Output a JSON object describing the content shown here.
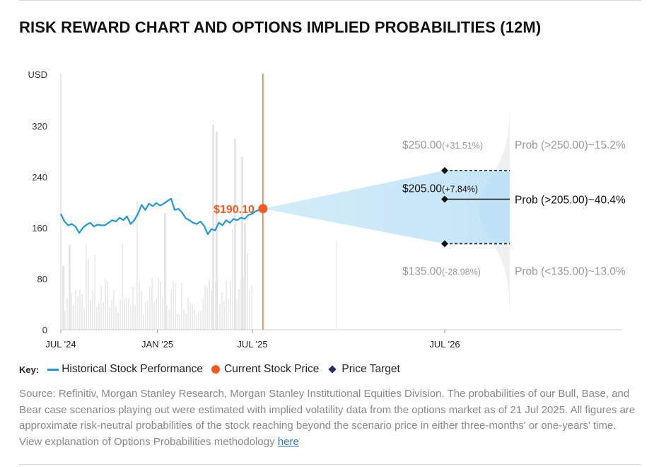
{
  "title": "RISK REWARD CHART AND OPTIONS IMPLIED PROBABILITIES (12M)",
  "chart_data": {
    "type": "line",
    "y_unit": "USD",
    "ylim": [
      0,
      360
    ],
    "y_ticks": [
      {
        "value": 0,
        "label": "0"
      },
      {
        "value": 80,
        "label": "80"
      },
      {
        "value": 160,
        "label": "160"
      },
      {
        "value": 240,
        "label": "240"
      },
      {
        "value": 320,
        "label": "320"
      }
    ],
    "x_ticks": [
      {
        "x": "2024-07",
        "label": "JUL '24"
      },
      {
        "x": "2025-01",
        "label": "JAN '25"
      },
      {
        "x": "2025-07",
        "label": "JUL '25"
      },
      {
        "x": "2026-07",
        "label": "JUL '26"
      }
    ],
    "historical_series": {
      "name": "Historical Stock Performance",
      "color": "#1f9ad6",
      "points": [
        [
          "2024-07-01",
          182
        ],
        [
          "2024-07-08",
          170
        ],
        [
          "2024-07-15",
          164
        ],
        [
          "2024-07-22",
          166
        ],
        [
          "2024-07-29",
          162
        ],
        [
          "2024-08-05",
          152
        ],
        [
          "2024-08-12",
          160
        ],
        [
          "2024-08-19",
          165
        ],
        [
          "2024-08-26",
          168
        ],
        [
          "2024-09-02",
          162
        ],
        [
          "2024-09-09",
          165
        ],
        [
          "2024-09-16",
          164
        ],
        [
          "2024-09-23",
          164
        ],
        [
          "2024-09-30",
          168
        ],
        [
          "2024-10-07",
          172
        ],
        [
          "2024-10-14",
          170
        ],
        [
          "2024-10-21",
          176
        ],
        [
          "2024-10-28",
          172
        ],
        [
          "2024-11-04",
          178
        ],
        [
          "2024-11-11",
          166
        ],
        [
          "2024-11-18",
          172
        ],
        [
          "2024-11-25",
          182
        ],
        [
          "2024-12-02",
          196
        ],
        [
          "2024-12-09",
          188
        ],
        [
          "2024-12-16",
          198
        ],
        [
          "2024-12-23",
          194
        ],
        [
          "2024-12-30",
          199
        ],
        [
          "2025-01-06",
          195
        ],
        [
          "2025-01-13",
          198
        ],
        [
          "2025-01-20",
          202
        ],
        [
          "2025-01-27",
          206
        ],
        [
          "2025-02-03",
          188
        ],
        [
          "2025-02-10",
          190
        ],
        [
          "2025-02-17",
          184
        ],
        [
          "2025-02-24",
          175
        ],
        [
          "2025-03-03",
          172
        ],
        [
          "2025-03-10",
          168
        ],
        [
          "2025-03-17",
          166
        ],
        [
          "2025-03-24",
          170
        ],
        [
          "2025-03-31",
          163
        ],
        [
          "2025-04-07",
          150
        ],
        [
          "2025-04-14",
          158
        ],
        [
          "2025-04-21",
          156
        ],
        [
          "2025-04-28",
          168
        ],
        [
          "2025-05-05",
          164
        ],
        [
          "2025-05-12",
          172
        ],
        [
          "2025-05-19",
          168
        ],
        [
          "2025-05-26",
          174
        ],
        [
          "2025-06-02",
          172
        ],
        [
          "2025-06-09",
          176
        ],
        [
          "2025-06-16",
          174
        ],
        [
          "2025-06-23",
          180
        ],
        [
          "2025-06-30",
          182
        ],
        [
          "2025-07-07",
          186
        ],
        [
          "2025-07-14",
          188
        ],
        [
          "2025-07-21",
          190.1
        ]
      ]
    },
    "current_price": {
      "name": "Current Stock Price",
      "date": "2025-07-21",
      "value": 190.1,
      "label": "$190.10",
      "color": "#f25a22"
    },
    "price_targets": [
      {
        "case": "bull",
        "value": 250,
        "label": "$250.00",
        "change": "(+31.51%)",
        "prob": "Prob (>250.00)~15.2%"
      },
      {
        "case": "base",
        "value": 205,
        "label": "$205.00",
        "change": "(+7.84%)",
        "prob": "Prob (>205.00)~40.4%"
      },
      {
        "case": "bear",
        "value": 135,
        "label": "$135.00",
        "change": "(-28.98%)",
        "prob": "Prob (<135.00)~13.0%"
      }
    ],
    "price_target_date": "2026-07",
    "cone_color": "#cfe9f8",
    "grid": false
  },
  "key": {
    "title": "Key:",
    "historical": "Historical Stock Performance",
    "current": "Current Stock Price",
    "target": "Price Target"
  },
  "source": {
    "text": "Source: Refinitiv, Morgan Stanley Research, Morgan Stanley Institutional Equities Division. The probabilities of our Bull, Base, and Bear case scenarios playing out were estimated with implied volatility data from the options market as of 21 Jul 2025. All figures are approximate risk-neutral probabilities of the stock reaching beyond the scenario price in either three-months' or one-years' time. View explanation of Options Probabilities methodology",
    "link": "here"
  }
}
